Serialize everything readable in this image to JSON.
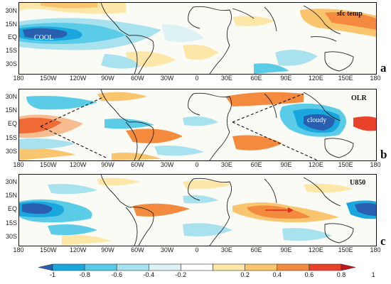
{
  "panels": [
    {
      "id": "a",
      "letter": "a",
      "variable_label": "sfc temp",
      "annotation": "COOL",
      "y_ticks": [
        "30N",
        "15N",
        "EQ",
        "15S",
        "30S"
      ]
    },
    {
      "id": "b",
      "letter": "b",
      "variable_label": "OLR",
      "annotation": "cloudy",
      "y_ticks": [
        "30N",
        "15N",
        "EQ",
        "15S",
        "30S"
      ]
    },
    {
      "id": "c",
      "letter": "c",
      "variable_label": "U850",
      "annotation": "",
      "y_ticks": [
        "30N",
        "15N",
        "EQ",
        "15S",
        "30S"
      ]
    }
  ],
  "x_ticks": [
    "180",
    "150W",
    "120W",
    "90W",
    "60W",
    "30W",
    "0",
    "30E",
    "60E",
    "90E",
    "120E",
    "150E",
    "180"
  ],
  "colorbar": {
    "labels": [
      "-1",
      "-0.8",
      "-0.6",
      "-0.4",
      "-0.2",
      "0.2",
      "0.4",
      "0.6",
      "0.8",
      "1"
    ],
    "colors": [
      "#2a5fb0",
      "#1aa7dd",
      "#5bcce8",
      "#a9e2ef",
      "#dcf2f5",
      "#ffffff",
      "#fde7a8",
      "#f9c56e",
      "#f48a3e",
      "#e8432a",
      "#c2151b"
    ]
  },
  "colors": {
    "cool_fill": "#2a5fb0",
    "frame": "#111111",
    "coast": "#222222",
    "arrow": "#e8281e"
  }
}
